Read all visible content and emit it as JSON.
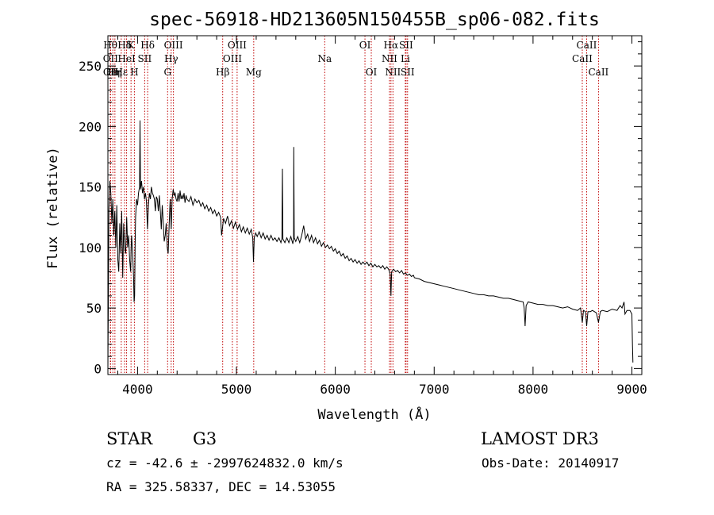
{
  "chart_data": {
    "type": "line",
    "title": "spec-56918-HD213605N150455B_sp06-082.fits",
    "xlabel": "Wavelength (Å)",
    "ylabel": "Flux (relative)",
    "xlim": [
      3700,
      9100
    ],
    "ylim": [
      -5,
      275
    ],
    "x_ticks": [
      4000,
      5000,
      6000,
      7000,
      8000,
      9000
    ],
    "y_ticks": [
      0,
      50,
      100,
      150,
      200,
      250
    ],
    "series": [
      {
        "name": "flux",
        "points": [
          [
            3700,
            0
          ],
          [
            3705,
            60
          ],
          [
            3710,
            130
          ],
          [
            3720,
            155
          ],
          [
            3730,
            145
          ],
          [
            3740,
            120
          ],
          [
            3750,
            140
          ],
          [
            3760,
            110
          ],
          [
            3770,
            130
          ],
          [
            3780,
            100
          ],
          [
            3790,
            135
          ],
          [
            3800,
            90
          ],
          [
            3810,
            80
          ],
          [
            3820,
            120
          ],
          [
            3830,
            95
          ],
          [
            3840,
            130
          ],
          [
            3850,
            75
          ],
          [
            3860,
            120
          ],
          [
            3870,
            100
          ],
          [
            3880,
            95
          ],
          [
            3890,
            125
          ],
          [
            3900,
            100
          ],
          [
            3910,
            110
          ],
          [
            3920,
            90
          ],
          [
            3930,
            80
          ],
          [
            3935,
            100
          ],
          [
            3940,
            110
          ],
          [
            3950,
            95
          ],
          [
            3960,
            75
          ],
          [
            3965,
            55
          ],
          [
            3970,
            60
          ],
          [
            3975,
            100
          ],
          [
            3980,
            125
          ],
          [
            3990,
            140
          ],
          [
            4000,
            135
          ],
          [
            4010,
            145
          ],
          [
            4020,
            150
          ],
          [
            4025,
            205
          ],
          [
            4030,
            148
          ],
          [
            4040,
            155
          ],
          [
            4050,
            145
          ],
          [
            4060,
            150
          ],
          [
            4070,
            140
          ],
          [
            4080,
            145
          ],
          [
            4090,
            138
          ],
          [
            4100,
            115
          ],
          [
            4110,
            135
          ],
          [
            4120,
            145
          ],
          [
            4130,
            140
          ],
          [
            4140,
            150
          ],
          [
            4150,
            145
          ],
          [
            4160,
            143
          ],
          [
            4170,
            140
          ],
          [
            4180,
            130
          ],
          [
            4190,
            142
          ],
          [
            4200,
            140
          ],
          [
            4210,
            130
          ],
          [
            4220,
            143
          ],
          [
            4230,
            130
          ],
          [
            4240,
            115
          ],
          [
            4250,
            135
          ],
          [
            4260,
            120
          ],
          [
            4270,
            105
          ],
          [
            4280,
            110
          ],
          [
            4290,
            120
          ],
          [
            4300,
            100
          ],
          [
            4310,
            95
          ],
          [
            4320,
            120
          ],
          [
            4330,
            140
          ],
          [
            4340,
            115
          ],
          [
            4350,
            140
          ],
          [
            4360,
            148
          ],
          [
            4370,
            143
          ],
          [
            4380,
            145
          ],
          [
            4390,
            140
          ],
          [
            4400,
            138
          ],
          [
            4410,
            145
          ],
          [
            4420,
            138
          ],
          [
            4430,
            147
          ],
          [
            4440,
            140
          ],
          [
            4450,
            143
          ],
          [
            4460,
            140
          ],
          [
            4470,
            145
          ],
          [
            4480,
            137
          ],
          [
            4490,
            143
          ],
          [
            4500,
            140
          ],
          [
            4520,
            138
          ],
          [
            4540,
            142
          ],
          [
            4560,
            135
          ],
          [
            4580,
            140
          ],
          [
            4600,
            137
          ],
          [
            4620,
            139
          ],
          [
            4640,
            134
          ],
          [
            4660,
            137
          ],
          [
            4680,
            132
          ],
          [
            4700,
            135
          ],
          [
            4720,
            130
          ],
          [
            4740,
            133
          ],
          [
            4760,
            128
          ],
          [
            4780,
            131
          ],
          [
            4800,
            126
          ],
          [
            4820,
            129
          ],
          [
            4840,
            125
          ],
          [
            4850,
            110
          ],
          [
            4860,
            117
          ],
          [
            4870,
            124
          ],
          [
            4890,
            120
          ],
          [
            4910,
            126
          ],
          [
            4930,
            118
          ],
          [
            4950,
            122
          ],
          [
            4970,
            116
          ],
          [
            4990,
            121
          ],
          [
            5010,
            115
          ],
          [
            5030,
            119
          ],
          [
            5050,
            113
          ],
          [
            5070,
            117
          ],
          [
            5090,
            112
          ],
          [
            5110,
            116
          ],
          [
            5130,
            111
          ],
          [
            5150,
            115
          ],
          [
            5165,
            108
          ],
          [
            5172,
            88
          ],
          [
            5180,
            108
          ],
          [
            5195,
            112
          ],
          [
            5210,
            109
          ],
          [
            5230,
            113
          ],
          [
            5250,
            108
          ],
          [
            5270,
            112
          ],
          [
            5290,
            107
          ],
          [
            5310,
            110
          ],
          [
            5330,
            106
          ],
          [
            5350,
            110
          ],
          [
            5370,
            106
          ],
          [
            5390,
            108
          ],
          [
            5410,
            105
          ],
          [
            5430,
            108
          ],
          [
            5450,
            104
          ],
          [
            5460,
            107
          ],
          [
            5465,
            165
          ],
          [
            5470,
            107
          ],
          [
            5490,
            104
          ],
          [
            5510,
            108
          ],
          [
            5530,
            104
          ],
          [
            5550,
            109
          ],
          [
            5570,
            103
          ],
          [
            5578,
            108
          ],
          [
            5580,
            183
          ],
          [
            5585,
            108
          ],
          [
            5600,
            105
          ],
          [
            5620,
            109
          ],
          [
            5640,
            104
          ],
          [
            5660,
            110
          ],
          [
            5680,
            118
          ],
          [
            5700,
            107
          ],
          [
            5720,
            111
          ],
          [
            5740,
            105
          ],
          [
            5760,
            110
          ],
          [
            5780,
            104
          ],
          [
            5800,
            108
          ],
          [
            5820,
            103
          ],
          [
            5840,
            106
          ],
          [
            5860,
            101
          ],
          [
            5880,
            104
          ],
          [
            5900,
            100
          ],
          [
            5920,
            102
          ],
          [
            5940,
            99
          ],
          [
            5960,
            101
          ],
          [
            5980,
            97
          ],
          [
            6000,
            99
          ],
          [
            6020,
            95
          ],
          [
            6040,
            97
          ],
          [
            6060,
            93
          ],
          [
            6080,
            95
          ],
          [
            6100,
            91
          ],
          [
            6120,
            93
          ],
          [
            6140,
            89
          ],
          [
            6160,
            91
          ],
          [
            6180,
            88
          ],
          [
            6200,
            90
          ],
          [
            6220,
            87
          ],
          [
            6240,
            89
          ],
          [
            6260,
            86
          ],
          [
            6280,
            88
          ],
          [
            6300,
            86
          ],
          [
            6320,
            88
          ],
          [
            6340,
            85
          ],
          [
            6360,
            87
          ],
          [
            6380,
            84
          ],
          [
            6400,
            86
          ],
          [
            6420,
            84
          ],
          [
            6440,
            85
          ],
          [
            6460,
            83
          ],
          [
            6480,
            85
          ],
          [
            6500,
            82
          ],
          [
            6520,
            84
          ],
          [
            6540,
            82
          ],
          [
            6555,
            78
          ],
          [
            6563,
            60
          ],
          [
            6570,
            80
          ],
          [
            6590,
            82
          ],
          [
            6610,
            80
          ],
          [
            6630,
            81
          ],
          [
            6650,
            79
          ],
          [
            6670,
            81
          ],
          [
            6690,
            78
          ],
          [
            6710,
            79
          ],
          [
            6730,
            77
          ],
          [
            6750,
            78
          ],
          [
            6770,
            76
          ],
          [
            6790,
            77
          ],
          [
            6800,
            75
          ],
          [
            6850,
            74
          ],
          [
            6900,
            72
          ],
          [
            6950,
            71
          ],
          [
            7000,
            70
          ],
          [
            7050,
            69
          ],
          [
            7100,
            68
          ],
          [
            7150,
            67
          ],
          [
            7200,
            66
          ],
          [
            7250,
            65
          ],
          [
            7300,
            64
          ],
          [
            7350,
            63
          ],
          [
            7400,
            62
          ],
          [
            7450,
            61
          ],
          [
            7500,
            61
          ],
          [
            7550,
            60
          ],
          [
            7600,
            60
          ],
          [
            7650,
            59
          ],
          [
            7700,
            58
          ],
          [
            7750,
            58
          ],
          [
            7800,
            57
          ],
          [
            7850,
            56
          ],
          [
            7900,
            55
          ],
          [
            7910,
            50
          ],
          [
            7920,
            35
          ],
          [
            7930,
            52
          ],
          [
            7950,
            55
          ],
          [
            8000,
            54
          ],
          [
            8050,
            53
          ],
          [
            8100,
            53
          ],
          [
            8150,
            52
          ],
          [
            8200,
            52
          ],
          [
            8250,
            51
          ],
          [
            8300,
            50
          ],
          [
            8350,
            51
          ],
          [
            8400,
            49
          ],
          [
            8450,
            48
          ],
          [
            8480,
            50
          ],
          [
            8498,
            38
          ],
          [
            8510,
            48
          ],
          [
            8530,
            47
          ],
          [
            8542,
            35
          ],
          [
            8555,
            47
          ],
          [
            8580,
            47
          ],
          [
            8600,
            48
          ],
          [
            8620,
            47
          ],
          [
            8640,
            46
          ],
          [
            8662,
            38
          ],
          [
            8680,
            47
          ],
          [
            8700,
            48
          ],
          [
            8750,
            47
          ],
          [
            8800,
            49
          ],
          [
            8850,
            48
          ],
          [
            8880,
            52
          ],
          [
            8900,
            50
          ],
          [
            8920,
            55
          ],
          [
            8930,
            45
          ],
          [
            8950,
            48
          ],
          [
            8980,
            48
          ],
          [
            9000,
            45
          ],
          [
            9005,
            20
          ],
          [
            9010,
            5
          ]
        ]
      }
    ],
    "line_markers": [
      {
        "x": 3725,
        "text": "Hθ",
        "row": 0
      },
      {
        "x": 3727,
        "text": "OII",
        "row": 1
      },
      {
        "x": 3728,
        "text": "OII",
        "row": 2
      },
      {
        "x": 3750,
        "text": "Hη",
        "row": 2
      },
      {
        "x": 3771,
        "text": "Hη",
        "row": 2
      },
      {
        "x": 3835,
        "text": "Hε",
        "row": 2
      },
      {
        "x": 3869,
        "text": "Hδ",
        "row": 0
      },
      {
        "x": 3889,
        "text": "HeI",
        "row": 1
      },
      {
        "x": 3934,
        "text": "K",
        "row": 0
      },
      {
        "x": 3968,
        "text": "H",
        "row": 2
      },
      {
        "x": 4072,
        "text": "SII",
        "row": 1
      },
      {
        "x": 4102,
        "text": "Hδ",
        "row": 0
      },
      {
        "x": 4304,
        "text": "G",
        "row": 2
      },
      {
        "x": 4340,
        "text": "Hγ",
        "row": 1
      },
      {
        "x": 4363,
        "text": "OIII",
        "row": 0
      },
      {
        "x": 4861,
        "text": "Hβ",
        "row": 2
      },
      {
        "x": 4959,
        "text": "OIII",
        "row": 1
      },
      {
        "x": 5007,
        "text": "OIII",
        "row": 0
      },
      {
        "x": 5175,
        "text": "Mg",
        "row": 2
      },
      {
        "x": 5893,
        "text": "Na",
        "row": 1
      },
      {
        "x": 6300,
        "text": "OI",
        "row": 0
      },
      {
        "x": 6364,
        "text": "OI",
        "row": 2
      },
      {
        "x": 6548,
        "text": "NII",
        "row": 1
      },
      {
        "x": 6563,
        "text": "Hα",
        "row": 0
      },
      {
        "x": 6583,
        "text": "NII",
        "row": 2
      },
      {
        "x": 6708,
        "text": "Li",
        "row": 1
      },
      {
        "x": 6716,
        "text": "SII",
        "row": 0
      },
      {
        "x": 6731,
        "text": "SII",
        "row": 2
      },
      {
        "x": 8498,
        "text": "CaII",
        "row": 1
      },
      {
        "x": 8542,
        "text": "CaII",
        "row": 0
      },
      {
        "x": 8662,
        "text": "CaII",
        "row": 2
      }
    ]
  },
  "info": {
    "object_class": "STAR",
    "subclass": "G3",
    "survey": "LAMOST DR3",
    "redshift_line": "cz = -42.6 ± -2997624832.0 km/s",
    "obs_date": "Obs-Date: 20140917",
    "coords": "RA = 325.58337, DEC =  14.53055"
  },
  "colors": {
    "spectrum": "#000000",
    "marker_line": "#c00000",
    "axes": "#000000"
  }
}
